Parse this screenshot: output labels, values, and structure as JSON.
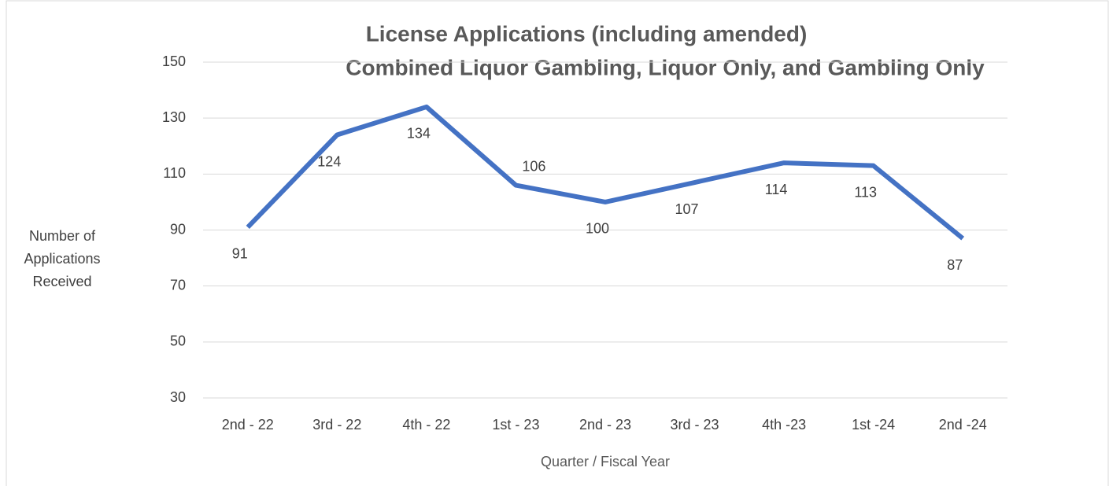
{
  "chart_data": {
    "type": "line",
    "title": "License Applications (including amended)",
    "subtitle": "Combined Liquor Gambling, Liquor Only, and Gambling Only",
    "xlabel": "Quarter / Fiscal Year",
    "ylabel": "Number of Applications Received",
    "categories": [
      "2nd - 22",
      "3rd - 22",
      "4th - 22",
      "1st - 23",
      "2nd - 23",
      "3rd - 23",
      "4th -23",
      "1st -24",
      "2nd -24"
    ],
    "values": [
      91,
      124,
      134,
      106,
      100,
      107,
      114,
      113,
      87
    ],
    "color": "#4472c4",
    "ylim": [
      30,
      150
    ],
    "yticks": [
      30,
      50,
      70,
      90,
      110,
      130,
      150
    ],
    "grid": true
  }
}
